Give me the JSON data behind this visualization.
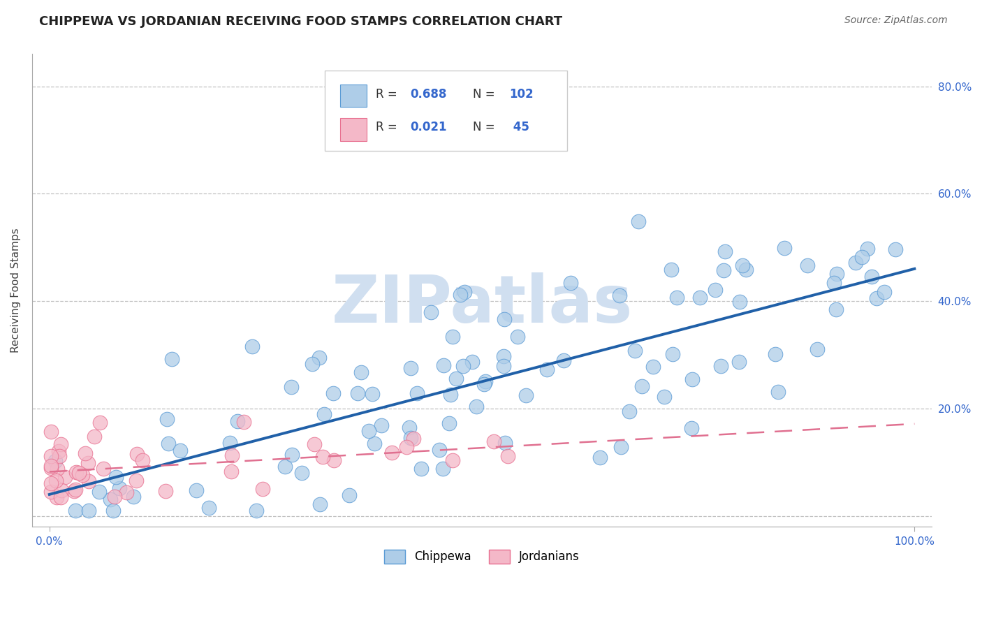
{
  "title": "CHIPPEWA VS JORDANIAN RECEIVING FOOD STAMPS CORRELATION CHART",
  "source_text": "Source: ZipAtlas.com",
  "ylabel": "Receiving Food Stamps",
  "xlabel": "",
  "x_min": 0.0,
  "x_max": 1.0,
  "y_min": -0.02,
  "y_max": 0.86,
  "y_ticks": [
    0.0,
    0.2,
    0.4,
    0.6,
    0.8
  ],
  "y_tick_labels": [
    "",
    "20.0%",
    "40.0%",
    "60.0%",
    "80.0%"
  ],
  "x_tick_labels": [
    "0.0%",
    "100.0%"
  ],
  "chippewa_R": 0.688,
  "chippewa_N": 102,
  "jordanian_R": 0.021,
  "jordanian_N": 45,
  "chippewa_color": "#aecde8",
  "chippewa_edge_color": "#5b9bd5",
  "chippewa_line_color": "#2060a8",
  "jordanian_color": "#f4b8c8",
  "jordanian_edge_color": "#e87090",
  "jordanian_line_color": "#e07090",
  "background_color": "#ffffff",
  "grid_color": "#bbbbbb",
  "watermark_color": "#d0dff0",
  "title_fontsize": 13,
  "source_fontsize": 10,
  "axis_label_fontsize": 11,
  "tick_fontsize": 11,
  "legend_fontsize": 12
}
